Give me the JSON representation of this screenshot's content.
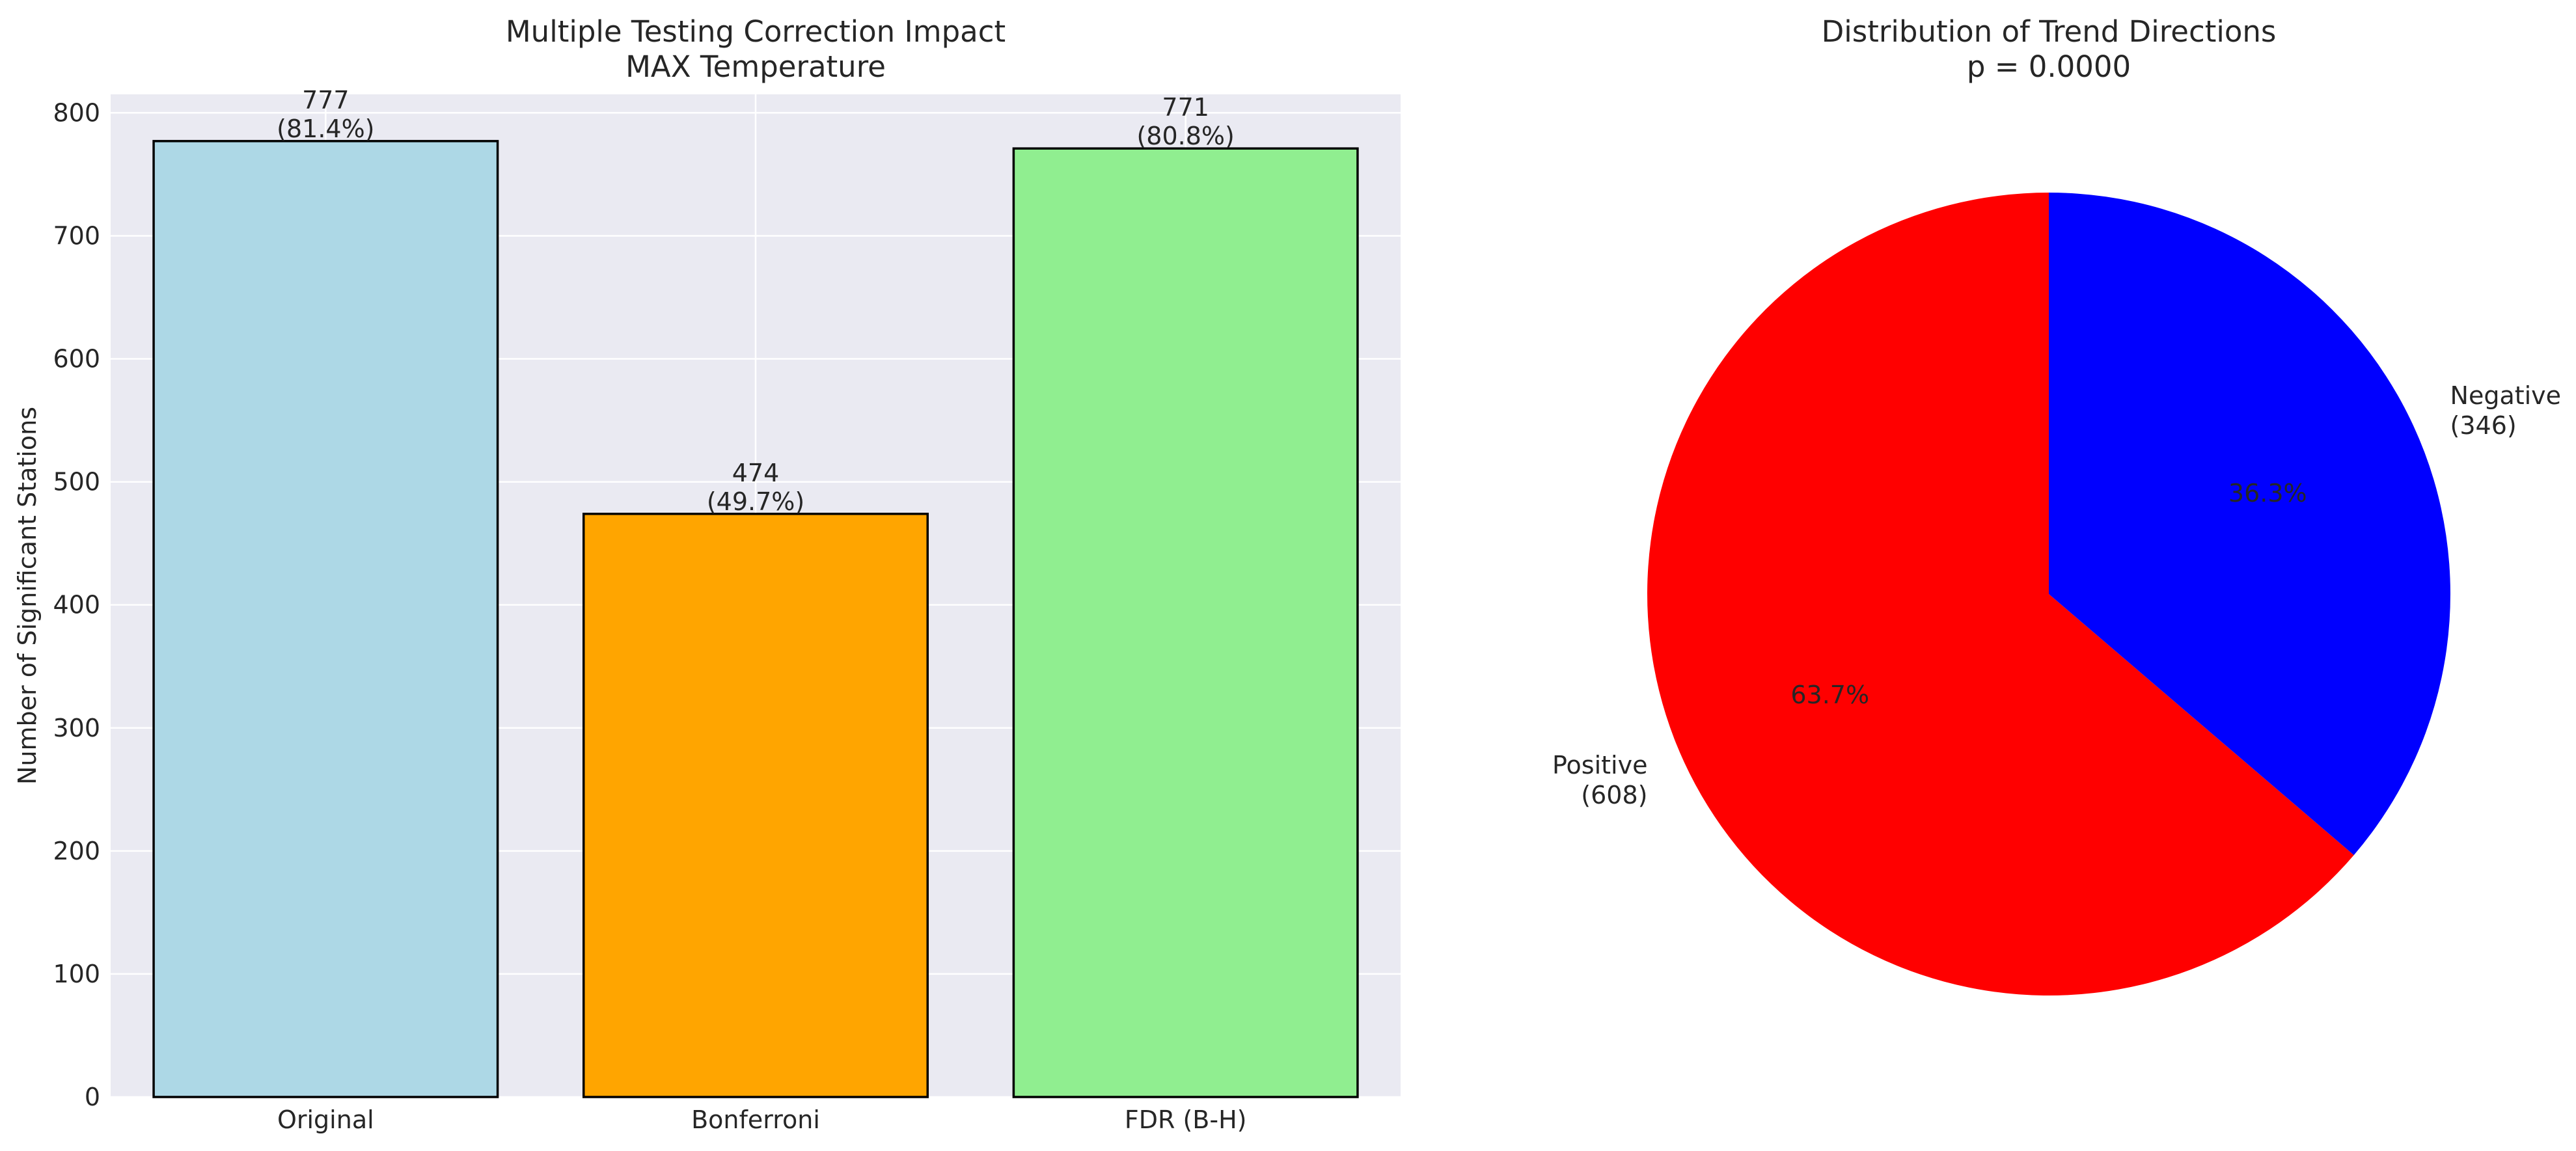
{
  "chart_data": [
    {
      "type": "bar",
      "title": "Multiple Testing Correction Impact\nMAX Temperature",
      "xlabel": "",
      "ylabel": "Number of Significant Stations",
      "categories": [
        "Original",
        "Bonferroni",
        "FDR (B-H)"
      ],
      "values": [
        777,
        474,
        771
      ],
      "value_labels": [
        "777\n(81.4%)",
        "474\n(49.7%)",
        "771\n(80.8%)"
      ],
      "colors": [
        "#add8e6",
        "#ffa500",
        "#90ee90"
      ],
      "ylim": [
        0,
        815
      ],
      "yticks": [
        0,
        100,
        200,
        300,
        400,
        500,
        600,
        700,
        800
      ],
      "grid": true,
      "background": "#eaeaf2"
    },
    {
      "type": "pie",
      "title": "Distribution of Trend Directions\np = 0.0000",
      "slices": [
        {
          "label": "Positive\n(608)",
          "value": 608,
          "pct": "63.7%",
          "color": "#ff0000"
        },
        {
          "label": "Negative\n(346)",
          "value": 346,
          "pct": "36.3%",
          "color": "#0000ff"
        }
      ],
      "start_angle": 90,
      "direction": "counterclockwise"
    }
  ]
}
